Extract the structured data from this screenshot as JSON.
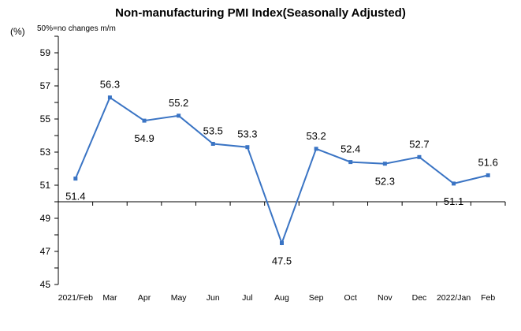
{
  "chart_data": {
    "type": "line",
    "title": "Non-manufacturing PMI Index(Seasonally Adjusted)",
    "unit_label": "(%)",
    "note": "50%=no changes  m/m",
    "categories": [
      "2021/Feb",
      "Mar",
      "Apr",
      "May",
      "Jun",
      "Jul",
      "Aug",
      "Sep",
      "Oct",
      "Nov",
      "Dec",
      "2022/Jan",
      "Feb"
    ],
    "values": [
      51.4,
      56.3,
      54.9,
      55.2,
      53.5,
      53.3,
      47.5,
      53.2,
      52.4,
      52.3,
      52.7,
      51.1,
      51.6
    ],
    "y_ticks": [
      "45",
      "47",
      "49",
      "51",
      "53",
      "55",
      "57",
      "59"
    ],
    "ylim": [
      45,
      60
    ],
    "baseline": 50,
    "colors": {
      "line": "#3a74c4",
      "marker": "#3a74c4",
      "axis": "#000000"
    }
  }
}
